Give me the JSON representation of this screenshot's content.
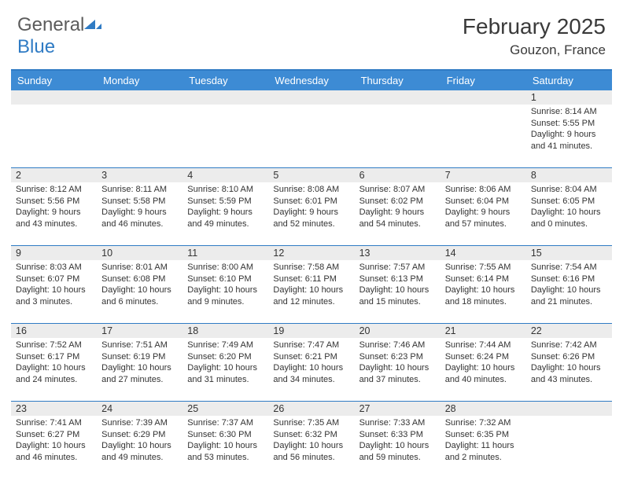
{
  "logo": {
    "text1": "General",
    "text2": "Blue"
  },
  "title": "February 2025",
  "subtitle": "Gouzon, France",
  "colors": {
    "header_bg": "#3d8bd4",
    "border": "#2f7bc4",
    "daynum_bg": "#ececec",
    "text": "#333333",
    "logo_gray": "#5c5c5c",
    "logo_blue": "#2f7bc4"
  },
  "dayNames": [
    "Sunday",
    "Monday",
    "Tuesday",
    "Wednesday",
    "Thursday",
    "Friday",
    "Saturday"
  ],
  "weeks": [
    [
      {
        "n": "",
        "sr": "",
        "ss": "",
        "dl": ""
      },
      {
        "n": "",
        "sr": "",
        "ss": "",
        "dl": ""
      },
      {
        "n": "",
        "sr": "",
        "ss": "",
        "dl": ""
      },
      {
        "n": "",
        "sr": "",
        "ss": "",
        "dl": ""
      },
      {
        "n": "",
        "sr": "",
        "ss": "",
        "dl": ""
      },
      {
        "n": "",
        "sr": "",
        "ss": "",
        "dl": ""
      },
      {
        "n": "1",
        "sr": "8:14 AM",
        "ss": "5:55 PM",
        "dl": "9 hours and 41 minutes."
      }
    ],
    [
      {
        "n": "2",
        "sr": "8:12 AM",
        "ss": "5:56 PM",
        "dl": "9 hours and 43 minutes."
      },
      {
        "n": "3",
        "sr": "8:11 AM",
        "ss": "5:58 PM",
        "dl": "9 hours and 46 minutes."
      },
      {
        "n": "4",
        "sr": "8:10 AM",
        "ss": "5:59 PM",
        "dl": "9 hours and 49 minutes."
      },
      {
        "n": "5",
        "sr": "8:08 AM",
        "ss": "6:01 PM",
        "dl": "9 hours and 52 minutes."
      },
      {
        "n": "6",
        "sr": "8:07 AM",
        "ss": "6:02 PM",
        "dl": "9 hours and 54 minutes."
      },
      {
        "n": "7",
        "sr": "8:06 AM",
        "ss": "6:04 PM",
        "dl": "9 hours and 57 minutes."
      },
      {
        "n": "8",
        "sr": "8:04 AM",
        "ss": "6:05 PM",
        "dl": "10 hours and 0 minutes."
      }
    ],
    [
      {
        "n": "9",
        "sr": "8:03 AM",
        "ss": "6:07 PM",
        "dl": "10 hours and 3 minutes."
      },
      {
        "n": "10",
        "sr": "8:01 AM",
        "ss": "6:08 PM",
        "dl": "10 hours and 6 minutes."
      },
      {
        "n": "11",
        "sr": "8:00 AM",
        "ss": "6:10 PM",
        "dl": "10 hours and 9 minutes."
      },
      {
        "n": "12",
        "sr": "7:58 AM",
        "ss": "6:11 PM",
        "dl": "10 hours and 12 minutes."
      },
      {
        "n": "13",
        "sr": "7:57 AM",
        "ss": "6:13 PM",
        "dl": "10 hours and 15 minutes."
      },
      {
        "n": "14",
        "sr": "7:55 AM",
        "ss": "6:14 PM",
        "dl": "10 hours and 18 minutes."
      },
      {
        "n": "15",
        "sr": "7:54 AM",
        "ss": "6:16 PM",
        "dl": "10 hours and 21 minutes."
      }
    ],
    [
      {
        "n": "16",
        "sr": "7:52 AM",
        "ss": "6:17 PM",
        "dl": "10 hours and 24 minutes."
      },
      {
        "n": "17",
        "sr": "7:51 AM",
        "ss": "6:19 PM",
        "dl": "10 hours and 27 minutes."
      },
      {
        "n": "18",
        "sr": "7:49 AM",
        "ss": "6:20 PM",
        "dl": "10 hours and 31 minutes."
      },
      {
        "n": "19",
        "sr": "7:47 AM",
        "ss": "6:21 PM",
        "dl": "10 hours and 34 minutes."
      },
      {
        "n": "20",
        "sr": "7:46 AM",
        "ss": "6:23 PM",
        "dl": "10 hours and 37 minutes."
      },
      {
        "n": "21",
        "sr": "7:44 AM",
        "ss": "6:24 PM",
        "dl": "10 hours and 40 minutes."
      },
      {
        "n": "22",
        "sr": "7:42 AM",
        "ss": "6:26 PM",
        "dl": "10 hours and 43 minutes."
      }
    ],
    [
      {
        "n": "23",
        "sr": "7:41 AM",
        "ss": "6:27 PM",
        "dl": "10 hours and 46 minutes."
      },
      {
        "n": "24",
        "sr": "7:39 AM",
        "ss": "6:29 PM",
        "dl": "10 hours and 49 minutes."
      },
      {
        "n": "25",
        "sr": "7:37 AM",
        "ss": "6:30 PM",
        "dl": "10 hours and 53 minutes."
      },
      {
        "n": "26",
        "sr": "7:35 AM",
        "ss": "6:32 PM",
        "dl": "10 hours and 56 minutes."
      },
      {
        "n": "27",
        "sr": "7:33 AM",
        "ss": "6:33 PM",
        "dl": "10 hours and 59 minutes."
      },
      {
        "n": "28",
        "sr": "7:32 AM",
        "ss": "6:35 PM",
        "dl": "11 hours and 2 minutes."
      },
      {
        "n": "",
        "sr": "",
        "ss": "",
        "dl": ""
      }
    ]
  ],
  "labels": {
    "sunrise": "Sunrise: ",
    "sunset": "Sunset: ",
    "daylight": "Daylight: "
  }
}
